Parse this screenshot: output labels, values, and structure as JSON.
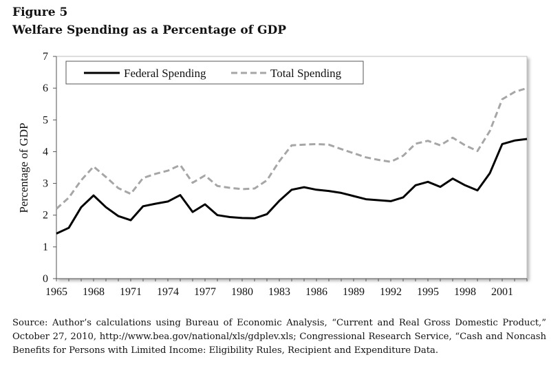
{
  "figure_label": "Figure 5",
  "source_note": "Source: Author’s calculations using Bureau of Economic Analysis, “Current and Real Gross Domestic Product,” October 27, 2010, http://www.bea.gov/national/xls/gdplev.xls; Congressional Research Service, “Cash and Noncash Benefits for Persons with Limited Income: Eligibility Rules, Recipient and Expenditure Data.",
  "chart_data": {
    "type": "line",
    "title": "Welfare Spending as a Percentage of GDP",
    "xlabel": "",
    "ylabel": "Percentage of GDP",
    "xlim": [
      1965,
      2003
    ],
    "ylim": [
      0,
      7
    ],
    "x_ticks": [
      "1965",
      "1968",
      "1971",
      "1974",
      "1977",
      "1980",
      "1983",
      "1986",
      "1989",
      "1992",
      "1995",
      "1998",
      "2001"
    ],
    "y_ticks": [
      "0",
      "1",
      "2",
      "3",
      "4",
      "5",
      "6",
      "7"
    ],
    "grid": false,
    "legend_position": "top-left",
    "x": [
      1965,
      1966,
      1967,
      1968,
      1969,
      1970,
      1971,
      1972,
      1973,
      1974,
      1975,
      1976,
      1977,
      1978,
      1979,
      1980,
      1981,
      1982,
      1983,
      1984,
      1985,
      1986,
      1987,
      1988,
      1989,
      1990,
      1991,
      1992,
      1993,
      1994,
      1995,
      1996,
      1997,
      1998,
      1999,
      2000,
      2001,
      2002,
      2003
    ],
    "series": [
      {
        "name": "Federal Spending",
        "color": "#000000",
        "dash": "solid",
        "values": [
          1.42,
          1.6,
          2.25,
          2.62,
          2.25,
          1.97,
          1.84,
          2.28,
          2.36,
          2.43,
          2.63,
          2.1,
          2.34,
          2.0,
          1.94,
          1.91,
          1.9,
          2.03,
          2.45,
          2.8,
          2.88,
          2.8,
          2.76,
          2.7,
          2.6,
          2.5,
          2.47,
          2.44,
          2.56,
          2.94,
          3.05,
          2.89,
          3.15,
          2.94,
          2.78,
          3.32,
          4.24,
          4.35,
          4.4
        ]
      },
      {
        "name": "Total Spending",
        "color": "#a6a6a6",
        "dash": "dashed",
        "values": [
          2.2,
          2.55,
          3.1,
          3.53,
          3.2,
          2.85,
          2.67,
          3.17,
          3.3,
          3.4,
          3.58,
          3.02,
          3.25,
          2.92,
          2.86,
          2.82,
          2.84,
          3.1,
          3.7,
          4.2,
          4.22,
          4.24,
          4.22,
          4.08,
          3.95,
          3.82,
          3.74,
          3.68,
          3.87,
          4.25,
          4.34,
          4.2,
          4.44,
          4.2,
          4.02,
          4.65,
          5.65,
          5.88,
          6.0
        ]
      }
    ]
  }
}
